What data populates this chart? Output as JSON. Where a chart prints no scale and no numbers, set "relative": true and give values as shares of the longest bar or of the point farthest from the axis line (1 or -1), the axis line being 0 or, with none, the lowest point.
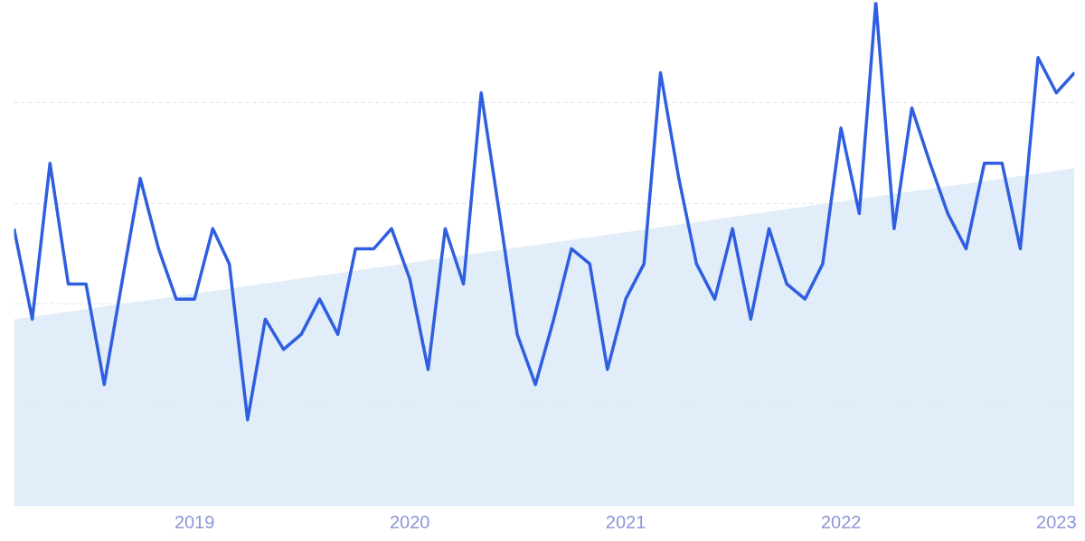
{
  "chart_data": {
    "type": "line",
    "relative": true,
    "grid": "y",
    "marker": "none",
    "line_style": "solid",
    "x": [
      "2018-03",
      "2018-04",
      "2018-05",
      "2018-06",
      "2018-07",
      "2018-08",
      "2018-09",
      "2018-10",
      "2018-11",
      "2018-12",
      "2019-01",
      "2019-02",
      "2019-03",
      "2019-04",
      "2019-05",
      "2019-06",
      "2019-07",
      "2019-08",
      "2019-09",
      "2019-10",
      "2019-11",
      "2019-12",
      "2020-01",
      "2020-02",
      "2020-03",
      "2020-04",
      "2020-05",
      "2020-06",
      "2020-07",
      "2020-08",
      "2020-09",
      "2020-10",
      "2020-11",
      "2020-12",
      "2021-01",
      "2021-02",
      "2021-03",
      "2021-04",
      "2021-05",
      "2021-06",
      "2021-07",
      "2021-08",
      "2021-09",
      "2021-10",
      "2021-11",
      "2021-12",
      "2022-01",
      "2022-02",
      "2022-03",
      "2022-04",
      "2022-05",
      "2022-06",
      "2022-07",
      "2022-08",
      "2022-09",
      "2022-10",
      "2022-11",
      "2022-12",
      "2023-01",
      "2023-02"
    ],
    "xlim": [
      "2018-03",
      "2023-02"
    ],
    "xticks": [
      "2019",
      "2020",
      "2021",
      "2022",
      "2023"
    ],
    "series": [
      {
        "type": "area",
        "color": "#dbe8f9",
        "x": [
          "2018-03",
          "2023-02"
        ],
        "values": [
          0.37,
          0.67
        ]
      },
      {
        "color": "#2f5fe0",
        "values": [
          0.55,
          0.37,
          0.68,
          0.44,
          0.44,
          0.24,
          0.45,
          0.65,
          0.51,
          0.41,
          0.41,
          0.55,
          0.48,
          0.17,
          0.37,
          0.31,
          0.34,
          0.41,
          0.34,
          0.51,
          0.51,
          0.55,
          0.45,
          0.27,
          0.55,
          0.44,
          0.82,
          0.58,
          0.34,
          0.24,
          0.37,
          0.51,
          0.48,
          0.27,
          0.41,
          0.48,
          0.86,
          0.65,
          0.48,
          0.41,
          0.55,
          0.37,
          0.55,
          0.44,
          0.41,
          0.48,
          0.75,
          0.58,
          1.0,
          0.55,
          0.79,
          0.68,
          0.58,
          0.51,
          0.68,
          0.68,
          0.51,
          0.89,
          0.82,
          0.86
        ]
      }
    ]
  }
}
